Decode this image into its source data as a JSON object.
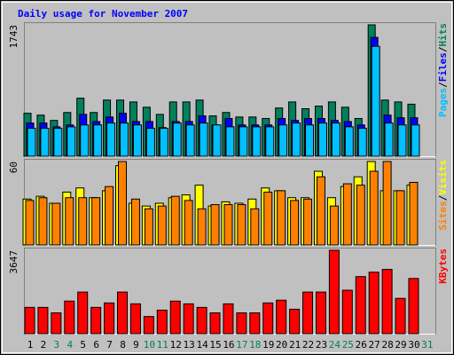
{
  "chart_data": [
    {
      "type": "bar",
      "title": "Daily usage for November 2007",
      "ylim": [
        0,
        1743
      ],
      "yticks": [
        1743
      ],
      "legend_separator": "/",
      "series": [
        {
          "name": "Hits",
          "color": "#00805c",
          "values": [
            570,
            545,
            475,
            580,
            770,
            580,
            745,
            745,
            720,
            650,
            555,
            720,
            720,
            745,
            535,
            580,
            520,
            520,
            500,
            640,
            720,
            630,
            665,
            720,
            650,
            500,
            1743,
            745,
            720,
            690,
            null
          ]
        },
        {
          "name": "Files",
          "color": "#0000ff",
          "values": [
            440,
            440,
            390,
            415,
            555,
            460,
            520,
            570,
            460,
            460,
            380,
            460,
            460,
            535,
            415,
            500,
            415,
            415,
            415,
            500,
            475,
            500,
            500,
            475,
            460,
            415,
            1577,
            545,
            510,
            510,
            null
          ]
        },
        {
          "name": "Pages",
          "color": "#00c0ff",
          "values": [
            370,
            370,
            370,
            390,
            415,
            415,
            440,
            440,
            415,
            370,
            370,
            440,
            415,
            440,
            415,
            390,
            390,
            390,
            390,
            415,
            440,
            415,
            440,
            440,
            390,
            370,
            1458,
            440,
            415,
            415,
            null
          ]
        }
      ]
    },
    {
      "type": "bar",
      "ylim": [
        0,
        60
      ],
      "yticks": [
        60
      ],
      "legend_separator": "/",
      "series": [
        {
          "name": "Visits",
          "color": "#ffff00",
          "values": [
            33,
            35,
            30,
            38,
            41,
            34,
            39,
            57,
            30,
            28,
            30,
            34,
            36,
            43,
            28,
            31,
            30,
            33,
            41,
            39,
            34,
            34,
            53,
            34,
            42,
            49,
            60,
            39,
            39,
            43,
            null
          ]
        },
        {
          "name": "Sites",
          "color": "#ff8000",
          "values": [
            32,
            34,
            30,
            34,
            34,
            34,
            42,
            60,
            33,
            26,
            28,
            35,
            32,
            26,
            29,
            29,
            29,
            26,
            38,
            39,
            32,
            33,
            49,
            28,
            44,
            43,
            53,
            60,
            39,
            45,
            null
          ]
        }
      ]
    },
    {
      "type": "bar",
      "ylim": [
        0,
        3647
      ],
      "yticks": [
        3647
      ],
      "categories": [
        "1",
        "2",
        "3",
        "4",
        "5",
        "6",
        "7",
        "8",
        "9",
        "10",
        "11",
        "12",
        "13",
        "14",
        "15",
        "16",
        "17",
        "18",
        "19",
        "20",
        "21",
        "22",
        "23",
        "24",
        "25",
        "26",
        "27",
        "28",
        "29",
        "30",
        "31"
      ],
      "category_colors": [
        "#000000",
        "#000000",
        "#00805c",
        "#00805c",
        "#000000",
        "#000000",
        "#000000",
        "#000000",
        "#000000",
        "#00805c",
        "#00805c",
        "#000000",
        "#000000",
        "#000000",
        "#000000",
        "#000000",
        "#00805c",
        "#00805c",
        "#000000",
        "#000000",
        "#000000",
        "#000000",
        "#000000",
        "#00805c",
        "#00805c",
        "#000000",
        "#000000",
        "#000000",
        "#000000",
        "#000000",
        "#00805c"
      ],
      "series": [
        {
          "name": "KBytes",
          "color": "#ff0000",
          "values": [
            1150,
            1150,
            910,
            1425,
            1820,
            1150,
            1345,
            1820,
            1305,
            750,
            1030,
            1425,
            1305,
            1150,
            910,
            1305,
            910,
            910,
            1345,
            1465,
            1070,
            1820,
            1820,
            3647,
            1900,
            2495,
            2690,
            2810,
            1545,
            2415,
            null
          ]
        }
      ]
    }
  ]
}
